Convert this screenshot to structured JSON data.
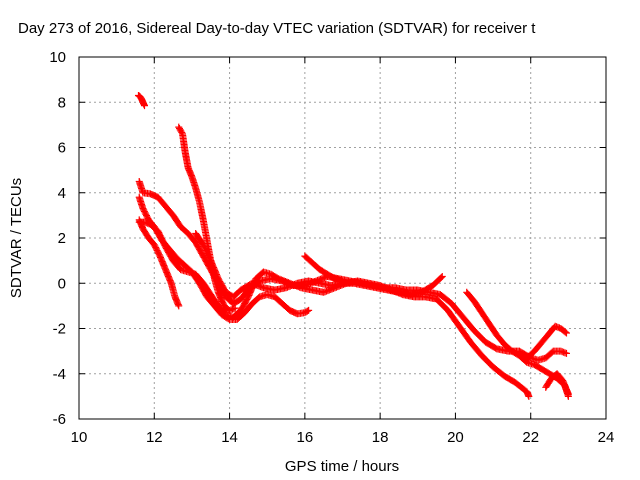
{
  "chart_data": {
    "type": "scatter",
    "title": "Day 273 of 2016, Sidereal Day-to-day VTEC variation (SDTVAR) for receiver t",
    "xlabel": "GPS time / hours",
    "ylabel": "SDTVAR / TECUs",
    "xlim": [
      10,
      24
    ],
    "ylim": [
      -6,
      10
    ],
    "xticks": [
      10,
      12,
      14,
      16,
      18,
      20,
      22,
      24
    ],
    "yticks": [
      -6,
      -4,
      -2,
      0,
      2,
      4,
      6,
      8,
      10
    ],
    "grid": true,
    "marker": "plus",
    "color": "#ff0000",
    "series": [
      {
        "points": [
          [
            11.58,
            8.3
          ],
          [
            11.62,
            8.25
          ],
          [
            11.66,
            8.15
          ],
          [
            11.7,
            8.0
          ],
          [
            11.74,
            7.85
          ]
        ]
      },
      {
        "points": [
          [
            12.65,
            6.9
          ],
          [
            12.75,
            6.6
          ],
          [
            12.82,
            5.8
          ],
          [
            12.9,
            5.1
          ],
          [
            13.0,
            4.7
          ],
          [
            13.1,
            4.2
          ],
          [
            13.2,
            3.6
          ],
          [
            13.3,
            2.8
          ],
          [
            13.4,
            1.9
          ],
          [
            13.5,
            1.0
          ],
          [
            13.6,
            0.2
          ],
          [
            13.7,
            -0.4
          ],
          [
            13.8,
            -0.8
          ],
          [
            13.9,
            -1.1
          ],
          [
            14.0,
            -1.2
          ],
          [
            14.15,
            -1.1
          ]
        ]
      },
      {
        "points": [
          [
            11.6,
            4.5
          ],
          [
            11.7,
            4.0
          ],
          [
            11.9,
            3.95
          ],
          [
            12.1,
            3.8
          ],
          [
            12.3,
            3.4
          ],
          [
            12.5,
            3.0
          ],
          [
            12.7,
            2.5
          ],
          [
            12.9,
            2.2
          ],
          [
            13.1,
            1.8
          ],
          [
            13.3,
            1.2
          ],
          [
            13.5,
            0.6
          ],
          [
            13.7,
            0.0
          ],
          [
            13.9,
            -0.6
          ],
          [
            14.1,
            -0.9
          ],
          [
            14.3,
            -0.7
          ],
          [
            14.5,
            -0.3
          ],
          [
            14.8,
            0.1
          ],
          [
            15.1,
            0.2
          ],
          [
            15.4,
            0.1
          ],
          [
            15.7,
            -0.1
          ],
          [
            16.0,
            -0.1
          ],
          [
            16.3,
            0.1
          ],
          [
            16.6,
            0.3
          ],
          [
            16.9,
            0.2
          ],
          [
            17.2,
            0.1
          ],
          [
            17.5,
            0.0
          ],
          [
            17.8,
            -0.1
          ],
          [
            18.1,
            -0.2
          ],
          [
            18.4,
            -0.2
          ],
          [
            18.7,
            -0.3
          ],
          [
            19.0,
            -0.3
          ],
          [
            19.3,
            -0.4
          ],
          [
            19.6,
            -0.5
          ],
          [
            19.9,
            -0.9
          ],
          [
            20.2,
            -1.5
          ],
          [
            20.5,
            -2.1
          ],
          [
            20.8,
            -2.6
          ],
          [
            21.1,
            -2.9
          ],
          [
            21.4,
            -3.0
          ],
          [
            21.7,
            -3.0
          ],
          [
            22.0,
            -3.3
          ],
          [
            22.2,
            -3.4
          ],
          [
            22.4,
            -3.3
          ],
          [
            22.6,
            -3.0
          ],
          [
            22.8,
            -3.0
          ],
          [
            22.95,
            -3.1
          ]
        ]
      },
      {
        "points": [
          [
            11.6,
            3.8
          ],
          [
            11.7,
            3.3
          ],
          [
            11.85,
            2.8
          ],
          [
            12.0,
            2.5
          ],
          [
            12.2,
            1.9
          ],
          [
            12.4,
            1.5
          ],
          [
            12.6,
            1.1
          ],
          [
            12.8,
            0.8
          ],
          [
            13.0,
            0.5
          ],
          [
            13.2,
            0.0
          ],
          [
            13.4,
            -0.6
          ],
          [
            13.6,
            -1.0
          ],
          [
            13.8,
            -1.4
          ],
          [
            14.0,
            -1.6
          ],
          [
            14.2,
            -1.6
          ],
          [
            14.4,
            -1.3
          ],
          [
            14.6,
            -0.9
          ],
          [
            14.8,
            -0.6
          ],
          [
            15.0,
            -0.5
          ],
          [
            15.2,
            -0.6
          ],
          [
            15.4,
            -0.9
          ],
          [
            15.6,
            -1.2
          ],
          [
            15.8,
            -1.35
          ],
          [
            16.0,
            -1.3
          ],
          [
            16.1,
            -1.2
          ]
        ]
      },
      {
        "points": [
          [
            11.6,
            2.8
          ],
          [
            11.7,
            2.4
          ],
          [
            11.85,
            2.0
          ],
          [
            12.0,
            1.7
          ],
          [
            12.15,
            1.2
          ],
          [
            12.3,
            0.6
          ],
          [
            12.45,
            0.0
          ],
          [
            12.55,
            -0.6
          ],
          [
            12.65,
            -1.0
          ]
        ]
      },
      {
        "points": [
          [
            11.6,
            2.7
          ],
          [
            11.75,
            2.7
          ],
          [
            11.9,
            2.6
          ],
          [
            12.1,
            2.3
          ],
          [
            12.3,
            1.6
          ],
          [
            12.5,
            1.0
          ],
          [
            12.7,
            0.6
          ],
          [
            12.9,
            0.5
          ],
          [
            13.1,
            0.4
          ],
          [
            13.3,
            0.0
          ],
          [
            13.5,
            -0.5
          ],
          [
            13.7,
            -1.0
          ],
          [
            13.9,
            -1.4
          ],
          [
            14.1,
            -1.5
          ],
          [
            14.3,
            -1.2
          ],
          [
            14.5,
            -0.6
          ],
          [
            14.7,
            0.2
          ],
          [
            14.9,
            0.5
          ],
          [
            15.1,
            0.4
          ],
          [
            15.3,
            0.2
          ],
          [
            15.6,
            0.0
          ],
          [
            15.9,
            -0.2
          ],
          [
            16.2,
            -0.3
          ],
          [
            16.5,
            -0.4
          ],
          [
            16.8,
            -0.2
          ],
          [
            17.1,
            0.0
          ],
          [
            17.4,
            0.1
          ],
          [
            17.7,
            0.0
          ],
          [
            18.0,
            -0.1
          ],
          [
            18.3,
            -0.3
          ],
          [
            18.6,
            -0.5
          ],
          [
            18.9,
            -0.6
          ],
          [
            19.2,
            -0.6
          ],
          [
            19.5,
            -0.7
          ],
          [
            19.8,
            -1.2
          ],
          [
            20.1,
            -1.9
          ],
          [
            20.4,
            -2.6
          ],
          [
            20.7,
            -3.2
          ],
          [
            21.0,
            -3.7
          ],
          [
            21.3,
            -4.1
          ],
          [
            21.6,
            -4.4
          ],
          [
            21.9,
            -4.8
          ],
          [
            21.95,
            -5.0
          ]
        ]
      },
      {
        "points": [
          [
            13.1,
            2.2
          ],
          [
            13.3,
            1.7
          ],
          [
            13.5,
            1.0
          ],
          [
            13.7,
            0.2
          ],
          [
            13.9,
            -0.4
          ],
          [
            14.1,
            -0.6
          ],
          [
            14.3,
            -0.3
          ],
          [
            14.6,
            0.0
          ],
          [
            14.9,
            -0.2
          ],
          [
            15.2,
            -0.3
          ],
          [
            15.5,
            -0.2
          ],
          [
            15.8,
            0.0
          ],
          [
            16.1,
            0.1
          ],
          [
            16.4,
            0.0
          ],
          [
            16.7,
            -0.1
          ],
          [
            17.0,
            0.0
          ],
          [
            17.3,
            0.0
          ],
          [
            17.6,
            -0.1
          ],
          [
            17.9,
            -0.2
          ],
          [
            18.2,
            -0.3
          ],
          [
            18.5,
            -0.4
          ],
          [
            18.8,
            -0.5
          ],
          [
            19.1,
            -0.4
          ],
          [
            19.4,
            -0.1
          ],
          [
            19.65,
            0.3
          ]
        ]
      },
      {
        "points": [
          [
            16.0,
            1.2
          ],
          [
            16.2,
            0.9
          ],
          [
            16.4,
            0.6
          ],
          [
            16.6,
            0.4
          ],
          [
            16.8,
            0.2
          ],
          [
            17.0,
            0.1
          ]
        ]
      },
      {
        "points": [
          [
            20.3,
            -0.4
          ],
          [
            20.5,
            -0.8
          ],
          [
            20.7,
            -1.3
          ],
          [
            20.9,
            -1.8
          ],
          [
            21.1,
            -2.3
          ],
          [
            21.3,
            -2.7
          ],
          [
            21.5,
            -3.0
          ],
          [
            21.7,
            -3.2
          ],
          [
            21.9,
            -3.5
          ],
          [
            22.1,
            -3.6
          ],
          [
            22.3,
            -3.8
          ],
          [
            22.5,
            -4.0
          ],
          [
            22.7,
            -4.2
          ],
          [
            22.9,
            -4.5
          ],
          [
            23.0,
            -5.0
          ]
        ]
      },
      {
        "points": [
          [
            21.9,
            -3.3
          ],
          [
            22.1,
            -3.0
          ],
          [
            22.3,
            -2.6
          ],
          [
            22.5,
            -2.2
          ],
          [
            22.65,
            -1.9
          ],
          [
            22.8,
            -2.0
          ],
          [
            22.95,
            -2.2
          ]
        ]
      },
      {
        "points": [
          [
            22.4,
            -4.6
          ],
          [
            22.55,
            -4.2
          ],
          [
            22.7,
            -4.0
          ],
          [
            22.85,
            -4.3
          ],
          [
            22.95,
            -4.7
          ],
          [
            23.0,
            -4.9
          ]
        ]
      }
    ]
  }
}
